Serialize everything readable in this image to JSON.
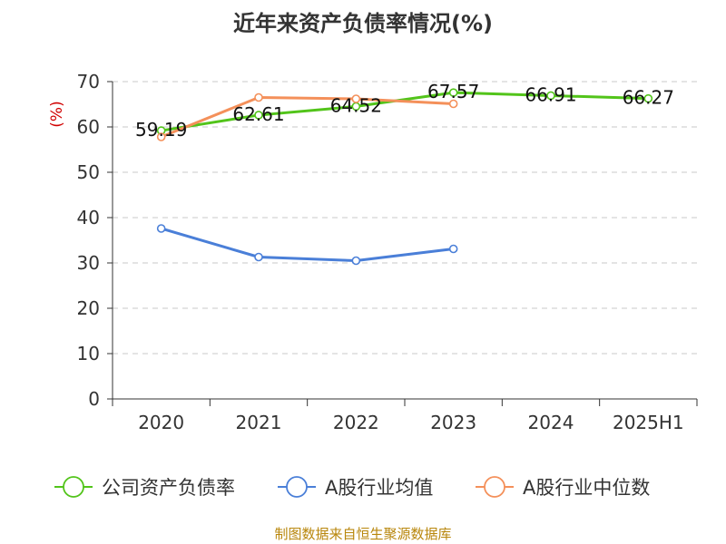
{
  "chart_data": {
    "type": "line",
    "title": "近年来资产负债率情况(%)",
    "ylabel": "(%)",
    "xlabel": "",
    "categories": [
      "2020",
      "2021",
      "2022",
      "2023",
      "2024",
      "2025H1"
    ],
    "ylim": [
      0,
      70
    ],
    "yticks": [
      0,
      10,
      20,
      30,
      40,
      50,
      60,
      70
    ],
    "grid": true,
    "legend_position": "bottom",
    "series": [
      {
        "name": "公司资产负债率",
        "color": "#52c41a",
        "values": [
          59.19,
          62.61,
          64.52,
          67.57,
          66.91,
          66.27
        ],
        "show_labels": true
      },
      {
        "name": "A股行业均值",
        "color": "#4a7fd8",
        "values": [
          37.6,
          31.3,
          30.5,
          33.1,
          null,
          null
        ],
        "show_labels": false
      },
      {
        "name": "A股行业中位数",
        "color": "#f4905a",
        "values": [
          57.8,
          66.5,
          66.2,
          65.1,
          null,
          null
        ],
        "show_labels": false
      }
    ],
    "data_labels": [
      "59.19",
      "62.61",
      "64.52",
      "67.57",
      "66.91",
      "66.27"
    ],
    "source": "制图数据来自恒生聚源数据库"
  }
}
